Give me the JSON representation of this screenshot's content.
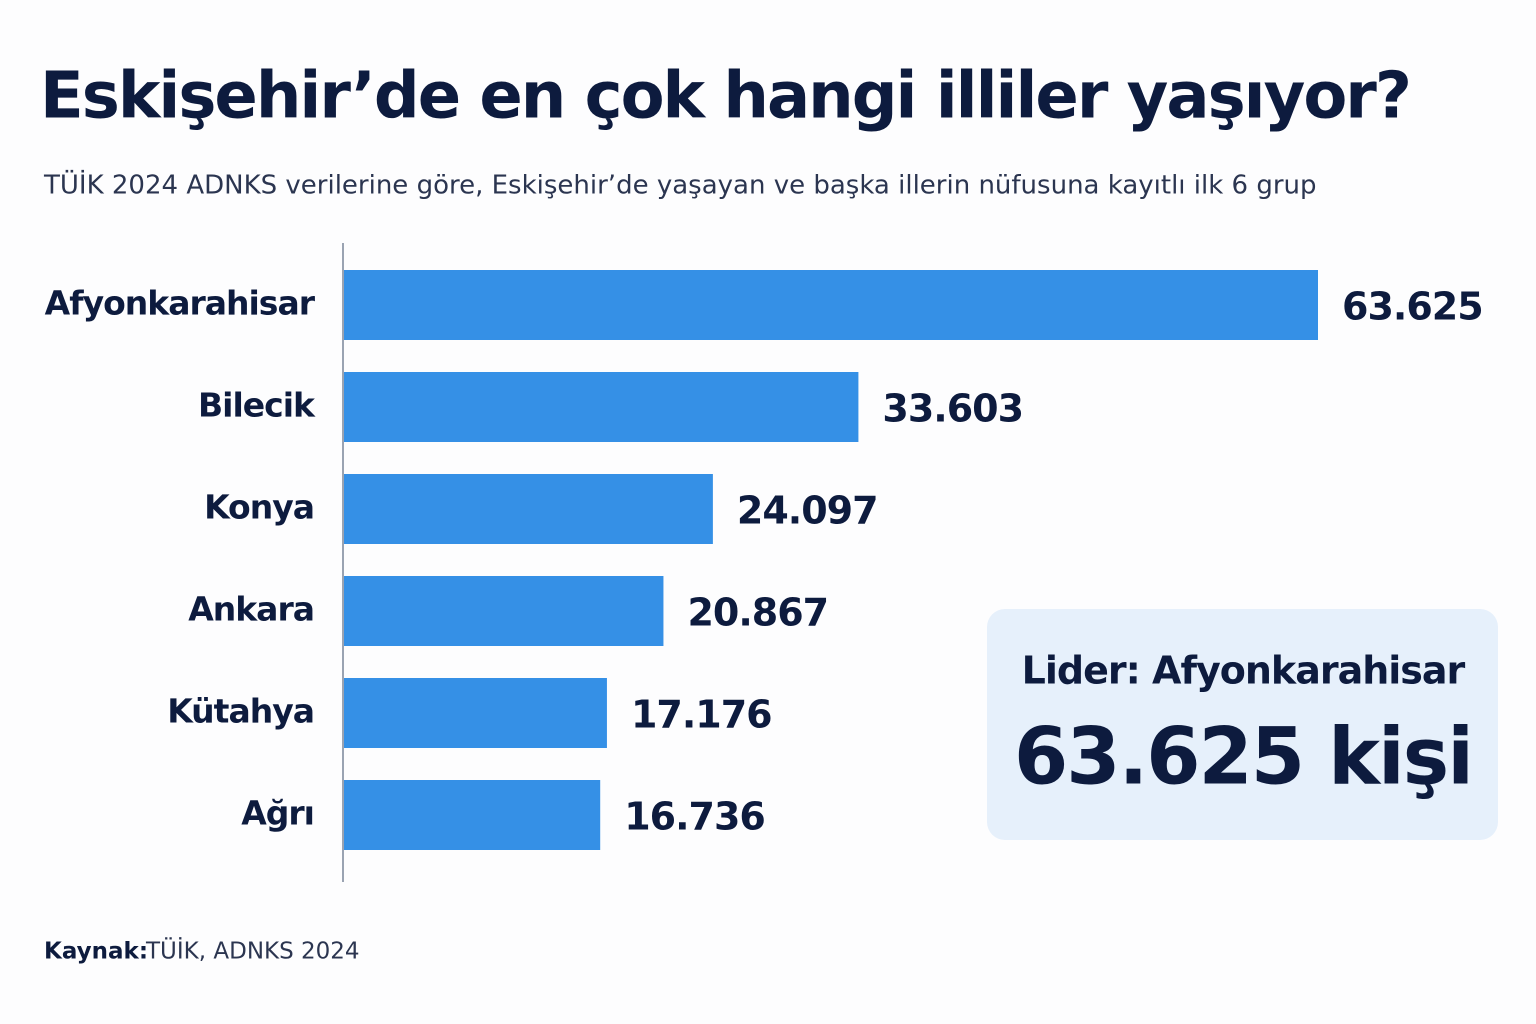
{
  "chart_data": {
    "type": "bar",
    "orientation": "horizontal",
    "title": "Eskişehir’de en çok hangi illiler yaşıyor?",
    "subtitle": "TÜİK 2024 ADNKS verilerine göre, Eskişehir’de yaşayan ve başka illerin nüfusuna kayıtlı ilk 6 grup",
    "categories": [
      "Afyonkarahisar",
      "Bilecik",
      "Konya",
      "Ankara",
      "Kütahya",
      "Ağrı"
    ],
    "values": [
      63625,
      33603,
      24097,
      20867,
      17176,
      16736
    ],
    "value_labels": [
      "63.625",
      "33.603",
      "24.097",
      "20.867",
      "17.176",
      "16.736"
    ],
    "color": "#3590e6",
    "callout": {
      "label": "Lider: Afyonkarahisar",
      "value_text": "63.625 kişi"
    },
    "source_label": "Kaynak:",
    "source": "TÜİK, ADNKS 2024"
  }
}
